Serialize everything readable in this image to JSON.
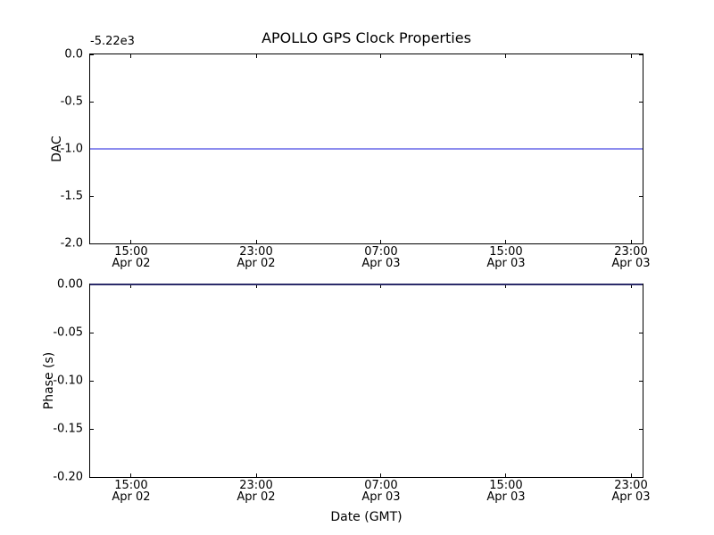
{
  "figure": {
    "background": "#ffffff",
    "text_color": "#000000",
    "spine_color": "#000000"
  },
  "chart_data": [
    {
      "type": "line",
      "title": "APOLLO GPS Clock Properties",
      "ylabel": "DAC",
      "y_offset_text": "-5.22e3",
      "ylim": [
        -2.0,
        0.0
      ],
      "yticks": [
        0.0,
        -0.5,
        -1.0,
        -1.5,
        -2.0
      ],
      "ytick_labels": [
        "0.0",
        "-0.5",
        "-1.0",
        "-1.5",
        "-2.0"
      ],
      "xticks": [
        {
          "time": "15:00",
          "date": "Apr 02",
          "frac": 0.0743
        },
        {
          "time": "23:00",
          "date": "Apr 02",
          "frac": 0.3005
        },
        {
          "time": "07:00",
          "date": "Apr 03",
          "frac": 0.5266
        },
        {
          "time": "15:00",
          "date": "Apr 03",
          "frac": 0.7528
        },
        {
          "time": "23:00",
          "date": "Apr 03",
          "frac": 0.979
        }
      ],
      "grid": false,
      "legend": null,
      "series": [
        {
          "name": "dac",
          "style": "constant-horizontal-line",
          "value": -1.0,
          "color": "#8d8dee"
        }
      ]
    },
    {
      "type": "line",
      "title": "",
      "ylabel": "Phase (s)",
      "xlabel": "Date (GMT)",
      "ylim": [
        -0.2,
        0.0
      ],
      "yticks": [
        0.0,
        -0.05,
        -0.1,
        -0.15,
        -0.2
      ],
      "ytick_labels": [
        "0.00",
        "-0.05",
        "-0.10",
        "-0.15",
        "-0.20"
      ],
      "xticks": [
        {
          "time": "15:00",
          "date": "Apr 02",
          "frac": 0.0743
        },
        {
          "time": "23:00",
          "date": "Apr 02",
          "frac": 0.3005
        },
        {
          "time": "07:00",
          "date": "Apr 03",
          "frac": 0.5266
        },
        {
          "time": "15:00",
          "date": "Apr 03",
          "frac": 0.7528
        },
        {
          "time": "23:00",
          "date": "Apr 03",
          "frac": 0.979
        }
      ],
      "grid": false,
      "legend": null,
      "series": [
        {
          "name": "phase",
          "style": "constant-horizontal-line",
          "value": 0.0,
          "color": "#2b2b6a"
        }
      ]
    }
  ]
}
